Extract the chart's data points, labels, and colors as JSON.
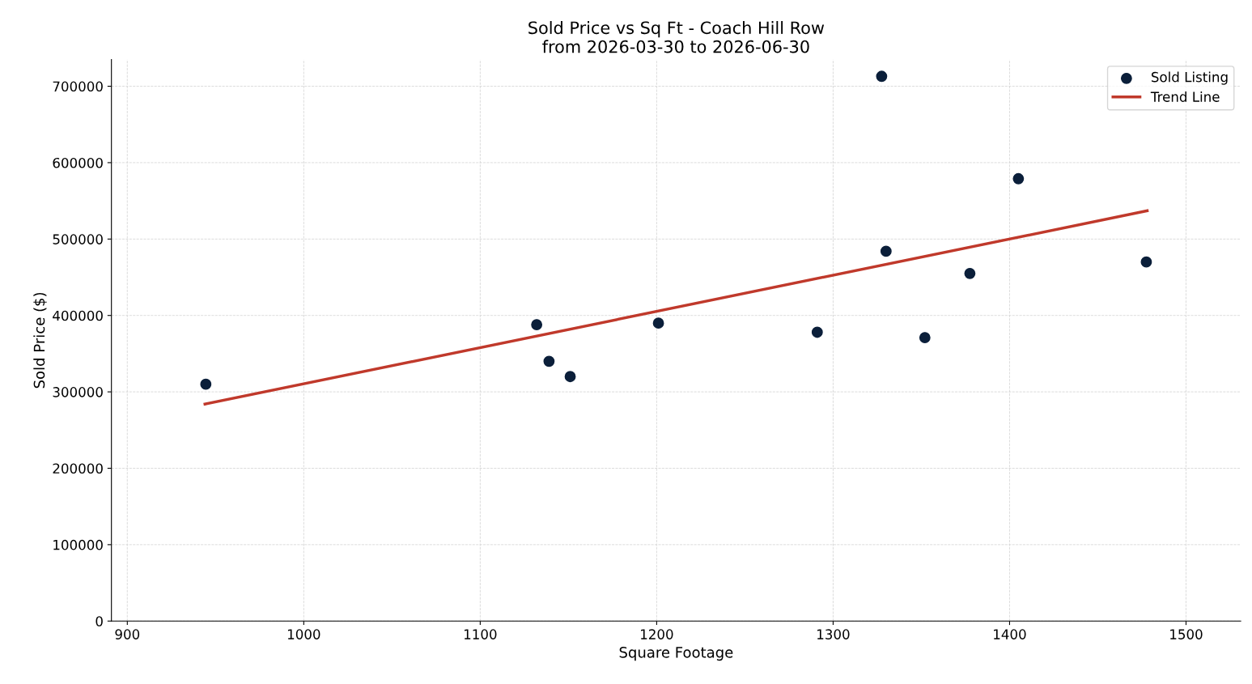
{
  "chart_data": {
    "type": "scatter",
    "title": "Sold Price vs Sq Ft - Coach Hill Row\nfrom 2026-03-30 to 2026-06-30",
    "xlabel": "Square Footage",
    "ylabel": "Sold Price ($)",
    "xlim": [
      891,
      1531
    ],
    "xticks": [
      900,
      1000,
      1100,
      1200,
      1300,
      1400,
      1500
    ],
    "ylim": [
      0,
      735000
    ],
    "yticks": [
      0,
      100000,
      200000,
      300000,
      400000,
      500000,
      600000,
      700000
    ],
    "grid": true,
    "legend": "top right",
    "series": [
      {
        "name": "Sold Listing",
        "marker": "circle",
        "color": "#0b1f3a",
        "x": [
          944.5,
          1132,
          1139,
          1151,
          1201,
          1291,
          1327.5,
          1330,
          1352,
          1377.5,
          1405,
          1477.5
        ],
        "values": [
          310000,
          388000,
          340000,
          320000,
          390000,
          378000,
          713000,
          484000,
          371000,
          455000,
          579000,
          470000
        ]
      },
      {
        "name": "Trend Line",
        "type": "line",
        "color": "#c0392b",
        "line_style": "solid",
        "x": [
          944,
          1478
        ],
        "values": [
          284000,
          537000
        ]
      }
    ]
  }
}
